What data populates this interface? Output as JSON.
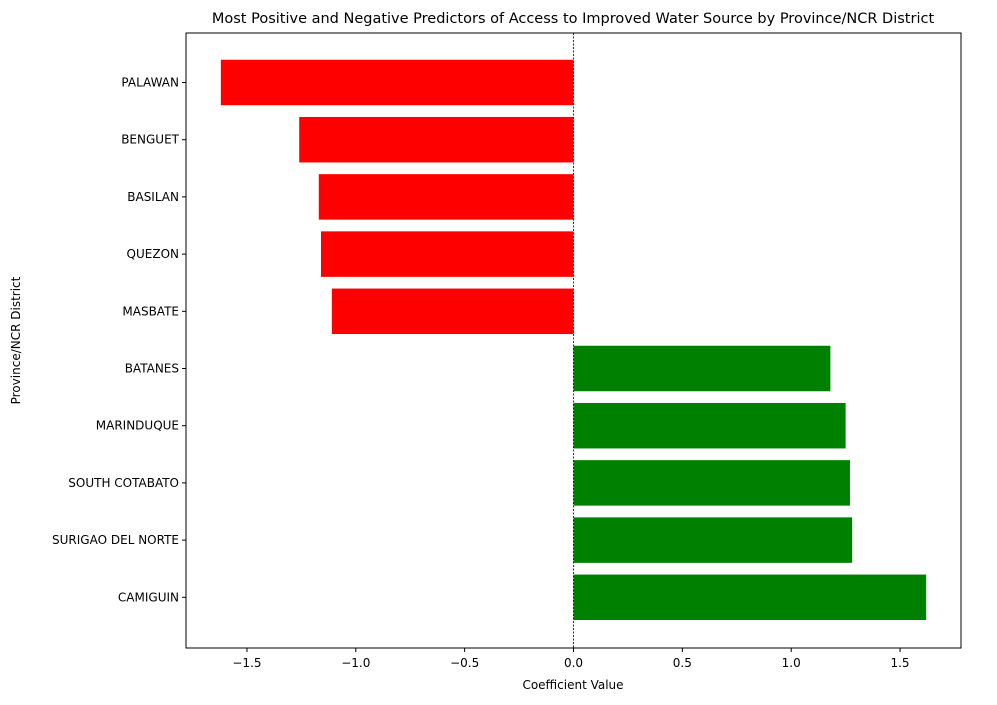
{
  "chart_data": {
    "type": "bar",
    "orientation": "horizontal",
    "title": "Most Positive and Negative Predictors of Access to Improved Water Source by Province/NCR District",
    "xlabel": "Coefficient Value",
    "ylabel": "Province/NCR District",
    "categories": [
      "PALAWAN",
      "BENGUET",
      "BASILAN",
      "QUEZON",
      "MASBATE",
      "BATANES",
      "MARINDUQUE",
      "SOUTH COTABATO",
      "SURIGAO DEL NORTE",
      "CAMIGUIN"
    ],
    "values": [
      -1.62,
      -1.26,
      -1.17,
      -1.16,
      -1.11,
      1.18,
      1.25,
      1.27,
      1.28,
      1.62
    ],
    "bar_colors": [
      "#ff0000",
      "#ff0000",
      "#ff0000",
      "#ff0000",
      "#ff0000",
      "#008000",
      "#008000",
      "#008000",
      "#008000",
      "#008000"
    ],
    "xlim": [
      -1.78,
      1.78
    ],
    "xticks": [
      -1.5,
      -1.0,
      -0.5,
      0.0,
      0.5,
      1.0,
      1.5
    ],
    "xtick_labels": [
      "−1.5",
      "−1.0",
      "−0.5",
      "0.0",
      "0.5",
      "1.0",
      "1.5"
    ],
    "zero_line": true,
    "grid": false,
    "legend": false
  }
}
